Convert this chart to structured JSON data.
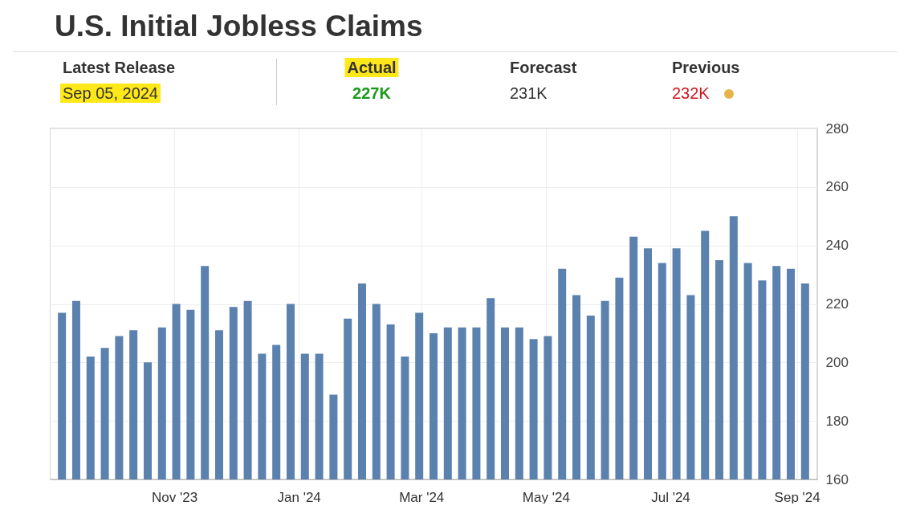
{
  "chart_data": {
    "type": "bar",
    "title": "U.S. Initial Jobless Claims",
    "annotations": [
      "Latest Release",
      "Sep 05, 2024",
      "Actual",
      "227K",
      "Forecast",
      "231K",
      "Previous",
      "232K"
    ],
    "x": [
      "2023-09-07",
      "2023-09-14",
      "2023-09-21",
      "2023-09-28",
      "2023-10-05",
      "2023-10-12",
      "2023-10-19",
      "2023-10-26",
      "2023-11-02",
      "2023-11-09",
      "2023-11-16",
      "2023-11-23",
      "2023-11-30",
      "2023-12-07",
      "2023-12-14",
      "2023-12-21",
      "2023-12-28",
      "2024-01-04",
      "2024-01-11",
      "2024-01-18",
      "2024-01-25",
      "2024-02-01",
      "2024-02-08",
      "2024-02-15",
      "2024-02-22",
      "2024-02-29",
      "2024-03-07",
      "2024-03-14",
      "2024-03-21",
      "2024-03-28",
      "2024-04-04",
      "2024-04-11",
      "2024-04-18",
      "2024-04-25",
      "2024-05-02",
      "2024-05-09",
      "2024-05-16",
      "2024-05-23",
      "2024-05-30",
      "2024-06-06",
      "2024-06-13",
      "2024-06-20",
      "2024-06-27",
      "2024-07-04",
      "2024-07-11",
      "2024-07-18",
      "2024-07-25",
      "2024-08-01",
      "2024-08-08",
      "2024-08-15",
      "2024-08-22",
      "2024-08-29",
      "2024-09-05"
    ],
    "values": [
      217,
      221,
      202,
      205,
      209,
      211,
      200,
      212,
      220,
      218,
      233,
      211,
      219,
      221,
      203,
      206,
      220,
      203,
      203,
      189,
      215,
      227,
      220,
      213,
      202,
      217,
      210,
      212,
      212,
      212,
      222,
      212,
      212,
      208,
      209,
      232,
      223,
      216,
      221,
      229,
      243,
      239,
      234,
      239,
      223,
      245,
      235,
      250,
      234,
      228,
      233,
      232,
      227
    ],
    "color": "#5b81ae",
    "xlim": [
      "2023-09-03",
      "2024-09-09"
    ],
    "xticks": [
      {
        "value": "2023-11-01",
        "label": "Nov '23"
      },
      {
        "value": "2024-01-01",
        "label": "Jan '24"
      },
      {
        "value": "2024-03-01",
        "label": "Mar '24"
      },
      {
        "value": "2024-05-01",
        "label": "May '24"
      },
      {
        "value": "2024-07-01",
        "label": "Jul '24"
      },
      {
        "value": "2024-09-01",
        "label": "Sep '24"
      }
    ],
    "ylim": [
      160,
      280
    ],
    "yticks": [
      160,
      180,
      200,
      220,
      240,
      260,
      280
    ],
    "grid": true
  }
}
